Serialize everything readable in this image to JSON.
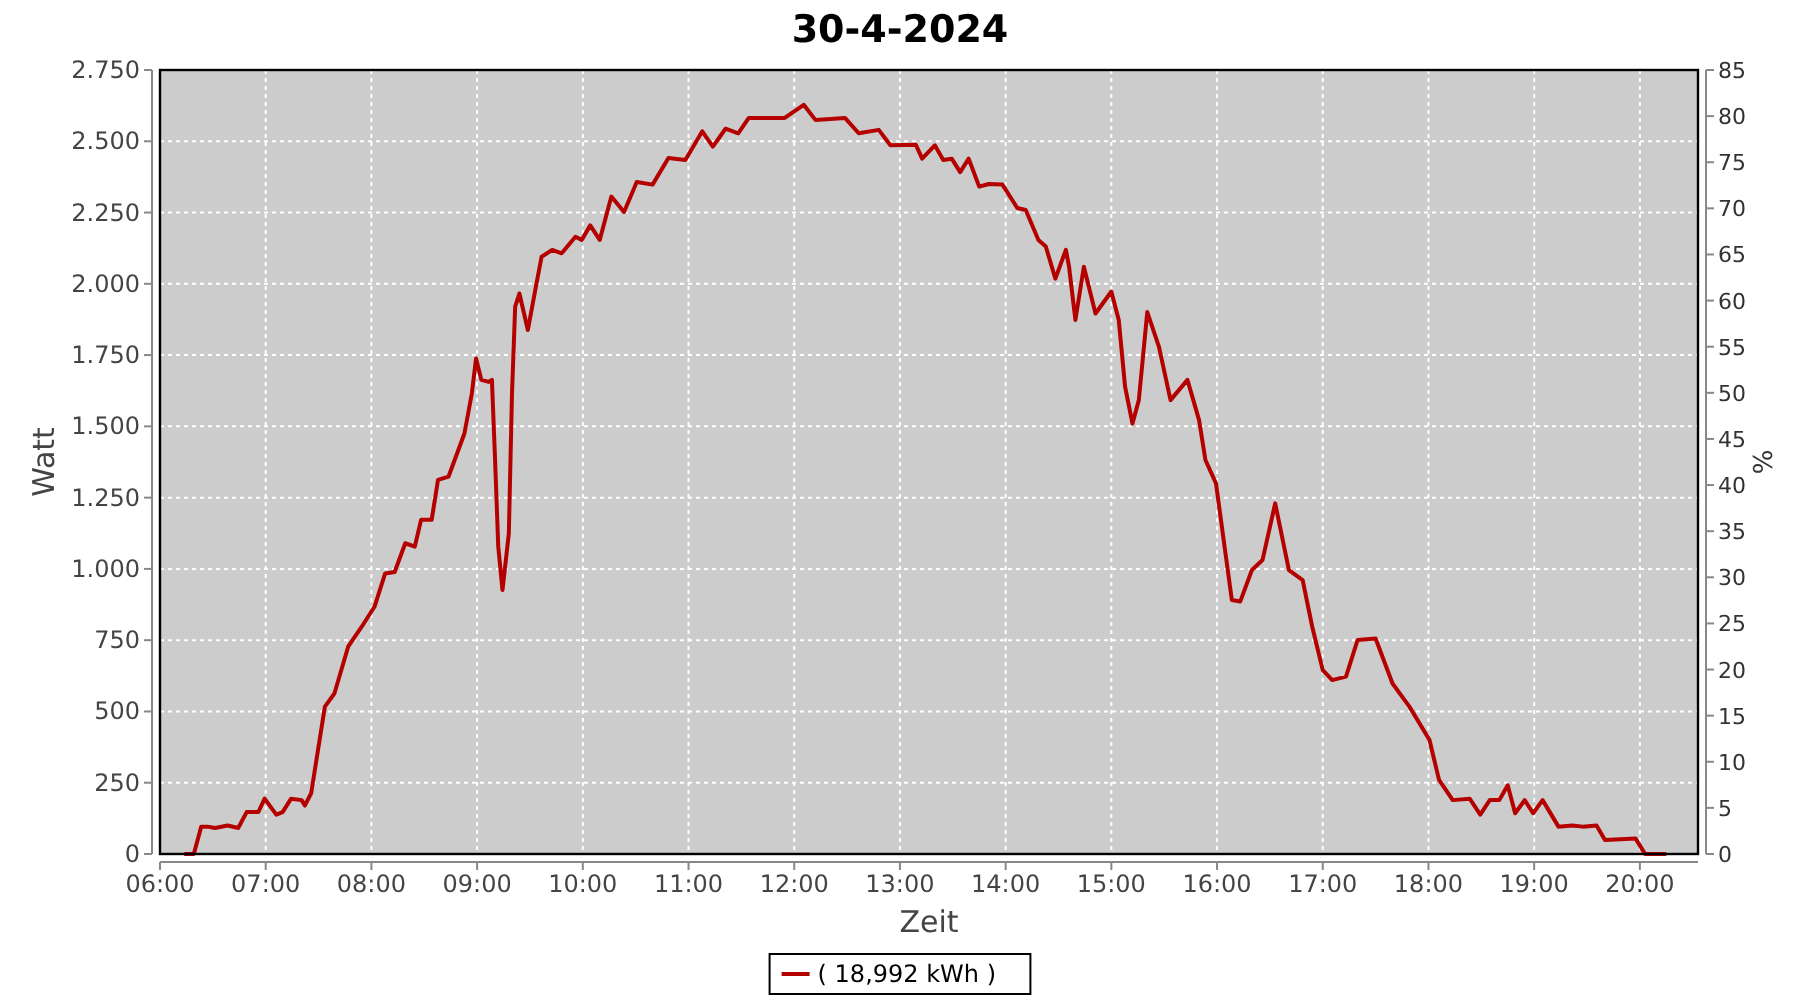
{
  "chart_data": {
    "type": "line",
    "title": "30-4-2024",
    "xlabel": "Zeit",
    "ylabel": "Watt",
    "y2label": "%",
    "xlim": [
      6,
      20.55
    ],
    "xticks": [
      {
        "value": 6,
        "label": "06:00"
      },
      {
        "value": 7,
        "label": "07:00"
      },
      {
        "value": 8,
        "label": "08:00"
      },
      {
        "value": 9,
        "label": "09:00"
      },
      {
        "value": 10,
        "label": "10:00"
      },
      {
        "value": 11,
        "label": "11:00"
      },
      {
        "value": 12,
        "label": "12:00"
      },
      {
        "value": 13,
        "label": "13:00"
      },
      {
        "value": 14,
        "label": "14:00"
      },
      {
        "value": 15,
        "label": "15:00"
      },
      {
        "value": 16,
        "label": "16:00"
      },
      {
        "value": 17,
        "label": "17:00"
      },
      {
        "value": 18,
        "label": "18:00"
      },
      {
        "value": 19,
        "label": "19:00"
      },
      {
        "value": 20,
        "label": "20:00"
      }
    ],
    "ylim": [
      0,
      2750
    ],
    "yticks": [
      0,
      250,
      500,
      750,
      {
        "value": 1000,
        "label": "1.000"
      },
      {
        "value": 1250,
        "label": "1.250"
      },
      {
        "value": 1500,
        "label": "1.500"
      },
      {
        "value": 1750,
        "label": "1.750"
      },
      {
        "value": 2000,
        "label": "2.000"
      },
      {
        "value": 2250,
        "label": "2.250"
      },
      {
        "value": 2500,
        "label": "2.500"
      },
      {
        "value": 2750,
        "label": "2.750"
      }
    ],
    "y2lim": [
      0,
      85
    ],
    "y2ticks": [
      0,
      5,
      10,
      15,
      20,
      25,
      30,
      35,
      40,
      45,
      50,
      55,
      60,
      65,
      70,
      75,
      80,
      85
    ],
    "grid": true,
    "legend": "bottom",
    "marker": "none",
    "line_style": "solid",
    "series": [
      {
        "name": "( 18,992 kWh )",
        "color": "#b50000",
        "x": [
          6.23,
          6.32,
          6.39,
          6.45,
          6.52,
          6.64,
          6.74,
          6.82,
          6.93,
          6.99,
          7.1,
          7.16,
          7.24,
          7.34,
          7.37,
          7.43,
          7.5,
          7.56,
          7.65,
          7.78,
          7.91,
          8.03,
          8.13,
          8.22,
          8.32,
          8.41,
          8.47,
          8.57,
          8.63,
          8.73,
          8.88,
          8.95,
          8.99,
          9.04,
          9.11,
          9.14,
          9.17,
          9.2,
          9.24,
          9.3,
          9.33,
          9.36,
          9.4,
          9.48,
          9.55,
          9.61,
          9.71,
          9.8,
          9.93,
          9.99,
          10.07,
          10.16,
          10.27,
          10.39,
          10.51,
          10.66,
          10.81,
          10.97,
          11.13,
          11.23,
          11.35,
          11.47,
          11.57,
          11.91,
          12.09,
          12.2,
          12.48,
          12.61,
          12.8,
          12.91,
          13.15,
          13.21,
          13.33,
          13.41,
          13.49,
          13.57,
          13.65,
          13.75,
          13.84,
          13.97,
          14.11,
          14.19,
          14.31,
          14.38,
          14.47,
          14.57,
          14.6,
          14.66,
          14.74,
          14.85,
          15,
          15.07,
          15.13,
          15.2,
          15.26,
          15.34,
          15.45,
          15.56,
          15.72,
          15.83,
          15.89,
          15.99,
          16.08,
          16.14,
          16.22,
          16.33,
          16.43,
          16.55,
          16.68,
          16.81,
          16.9,
          17,
          17.09,
          17.22,
          17.33,
          17.5,
          17.66,
          17.82,
          18.01,
          18.1,
          18.23,
          18.39,
          18.49,
          18.58,
          18.67,
          18.75,
          18.82,
          18.91,
          18.99,
          19.08,
          19.23,
          19.36,
          19.46,
          19.59,
          19.67,
          19.96,
          20.05,
          20.25
        ],
        "values": [
          0,
          0,
          96,
          96,
          91,
          100,
          91,
          147,
          147,
          194,
          138,
          147,
          194,
          189,
          170,
          213,
          377,
          517,
          563,
          727,
          798,
          868,
          984,
          989,
          1090,
          1078,
          1172,
          1172,
          1312,
          1324,
          1475,
          1615,
          1738,
          1663,
          1656,
          1663,
          1382,
          1078,
          926,
          1124,
          1615,
          1920,
          1966,
          1838,
          1978,
          2095,
          2119,
          2107,
          2165,
          2154,
          2205,
          2154,
          2306,
          2252,
          2357,
          2348,
          2441,
          2434,
          2535,
          2481,
          2544,
          2528,
          2582,
          2582,
          2628,
          2575,
          2582,
          2528,
          2540,
          2486,
          2488,
          2439,
          2486,
          2434,
          2439,
          2392,
          2439,
          2341,
          2350,
          2348,
          2266,
          2259,
          2154,
          2131,
          2018,
          2119,
          2060,
          1873,
          2060,
          1896,
          1973,
          1873,
          1639,
          1510,
          1592,
          1901,
          1780,
          1592,
          1663,
          1522,
          1382,
          1300,
          1054,
          891,
          886,
          996,
          1031,
          1230,
          996,
          961,
          798,
          645,
          610,
          622,
          751,
          756,
          598,
          517,
          400,
          260,
          189,
          194,
          138,
          189,
          189,
          241,
          143,
          189,
          143,
          189,
          96,
          100,
          96,
          100,
          49,
          54,
          0,
          0
        ]
      }
    ]
  }
}
